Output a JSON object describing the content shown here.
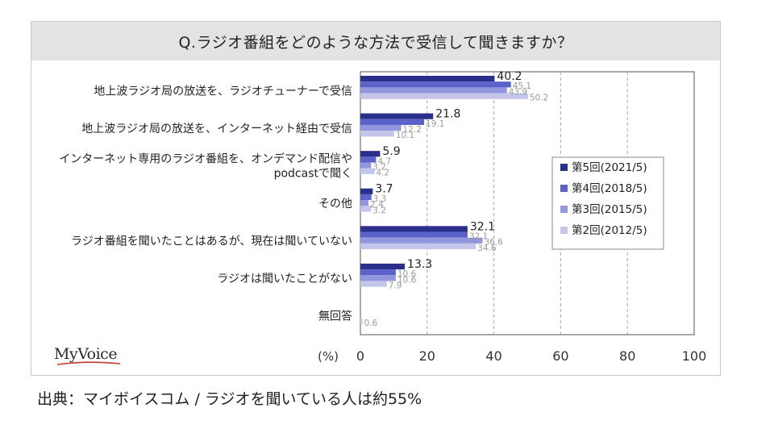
{
  "question_title": "Q.ラジオ番組をどのような方法で受信して聞きますか？",
  "logo_text": "MyVoice",
  "caption": "出典：マイボイスコム / ラジオを聞いている人は約55%",
  "colors": {
    "series": [
      "#2b2f8c",
      "#5b62c9",
      "#9296dc",
      "#c3c5eb"
    ],
    "grid": "#aaaaaa",
    "title_bg": "#e3e3e3"
  },
  "chart_data": {
    "type": "bar",
    "orientation": "horizontal",
    "title": "Q.ラジオ番組をどのような方法で受信して聞きますか？",
    "unit_label": "(%)",
    "xlim": [
      0,
      100
    ],
    "x_ticks": [
      "0",
      "20",
      "40",
      "60",
      "80",
      "100"
    ],
    "grid": true,
    "legend_position": "right",
    "categories": [
      [
        "地上波ラジオ局の放送を、ラジオチューナーで受信"
      ],
      [
        "地上波ラジオ局の放送を、インターネット経由で受信"
      ],
      [
        "インターネット専用のラジオ番組を、オンデマンド配信や",
        "podcastで聞く"
      ],
      [
        "その他"
      ],
      [
        "ラジオ番組を聞いたことはあるが、現在は聞いていない"
      ],
      [
        "ラジオは聞いたことがない"
      ],
      [
        "無回答"
      ]
    ],
    "series": [
      {
        "name": "第5回(2021/5)",
        "values": [
          40.2,
          21.8,
          5.9,
          3.7,
          32.1,
          13.3,
          0
        ]
      },
      {
        "name": "第4回(2018/5)",
        "values": [
          45.1,
          19.1,
          4.7,
          3.3,
          32.1,
          10.6,
          0
        ]
      },
      {
        "name": "第3回(2015/5)",
        "values": [
          43.9,
          12.2,
          3.2,
          2.4,
          36.6,
          10.6,
          0
        ]
      },
      {
        "name": "第2回(2012/5)",
        "values": [
          50.2,
          10.1,
          4.2,
          3.2,
          34.6,
          7.9,
          0.6
        ]
      }
    ]
  }
}
